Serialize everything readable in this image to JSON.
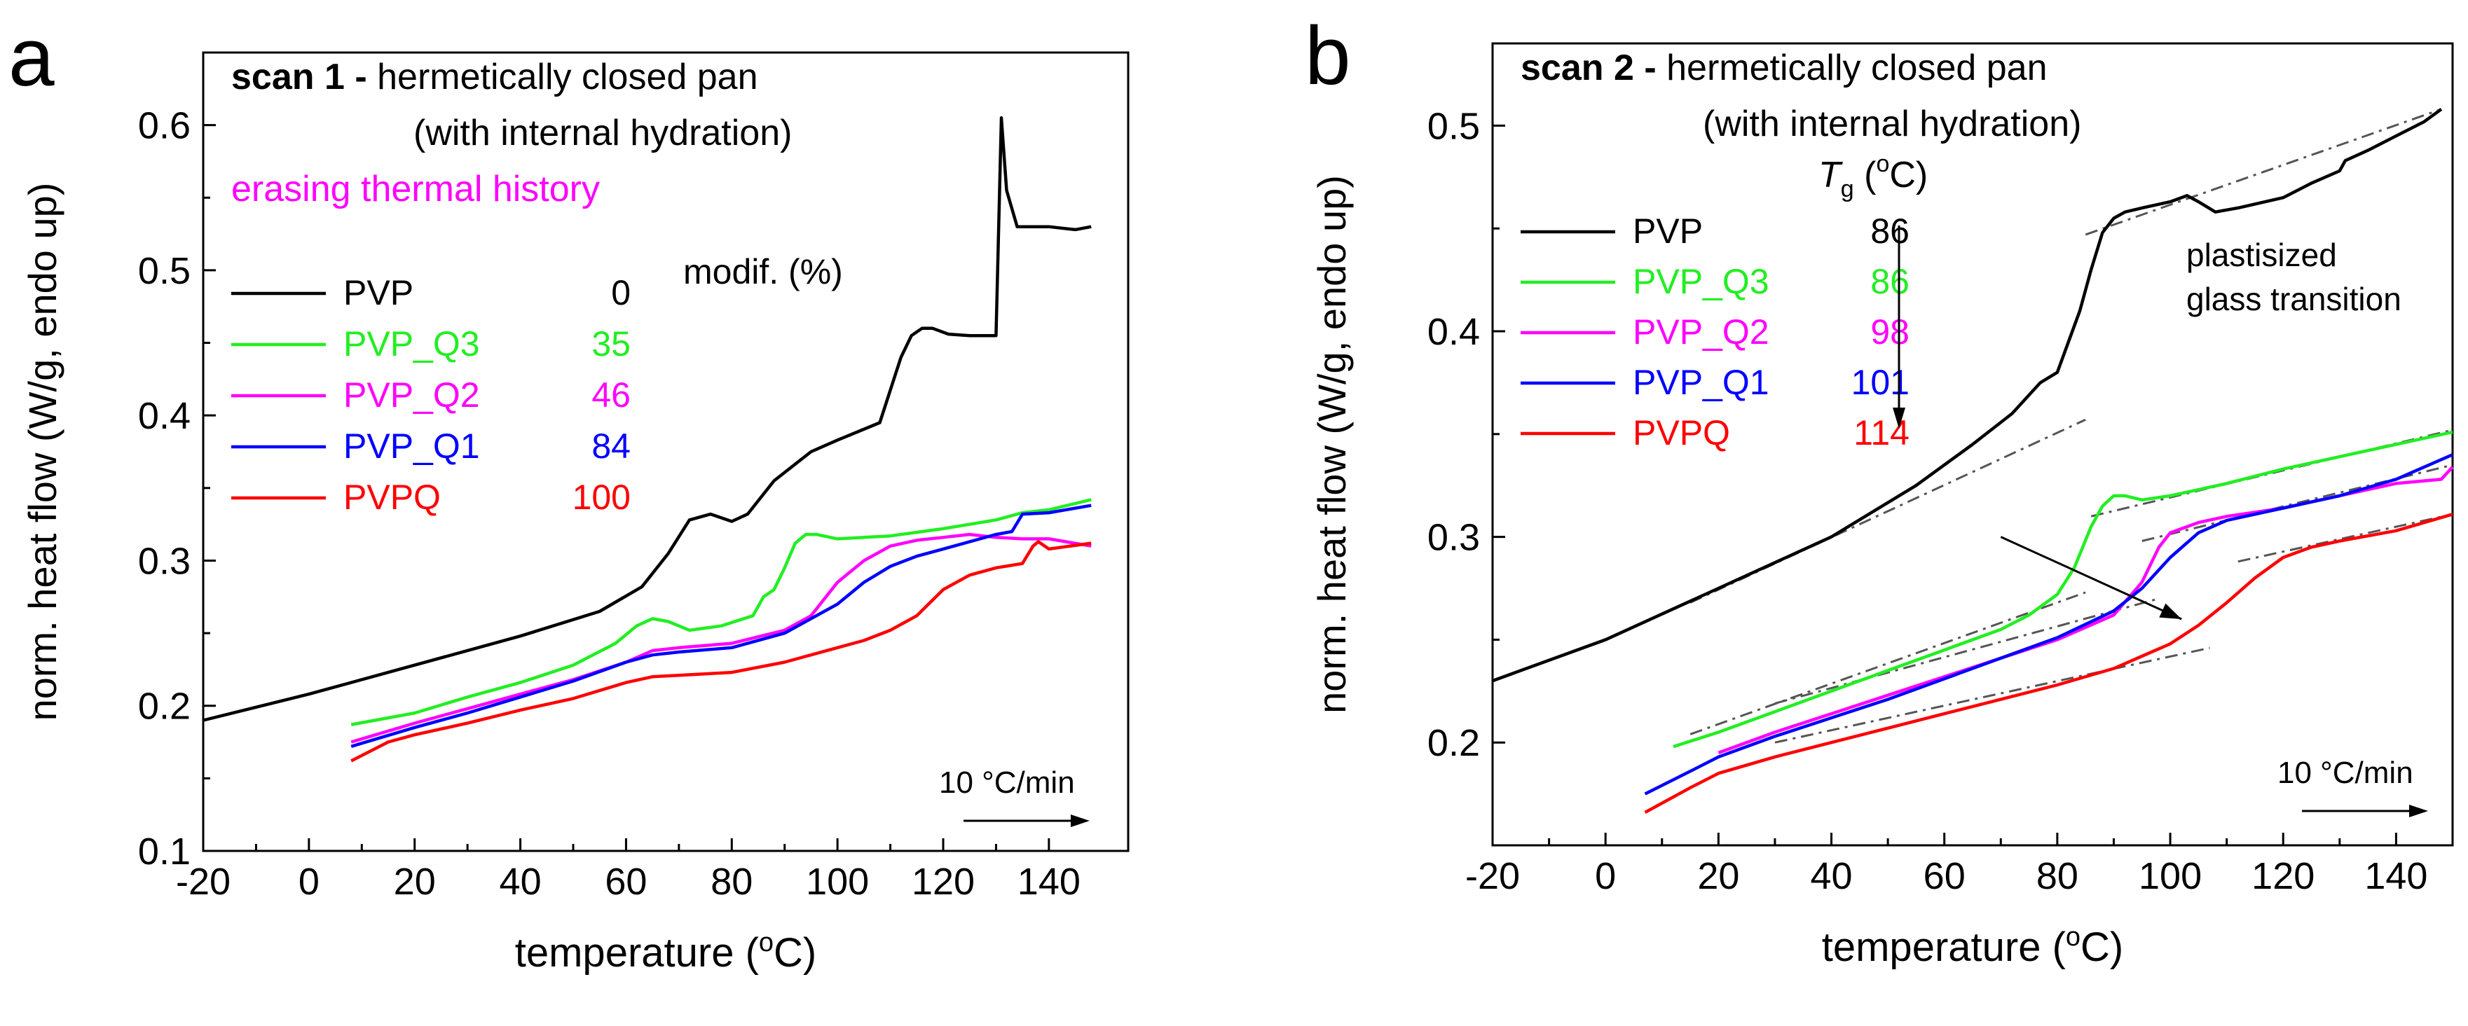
{
  "colors": {
    "PVP": "#000000",
    "PVP_Q3": "#22ee22",
    "PVP_Q2": "#ff00ff",
    "PVP_Q1": "#0000ff",
    "PVPQ": "#ff0000",
    "guide": "#555555"
  },
  "chart_data": [
    {
      "type": "line",
      "panel_label": "a",
      "title_bold": "scan 1 -",
      "title_rest": "hermetically closed pan",
      "title_line2": "(with internal hydration)",
      "subtitle": "erasing thermal history",
      "xlabel": "temperature (",
      "xlabel_sup": "o",
      "xlabel_end": "C)",
      "ylabel": "norm. heat flow (W/g, endo up)",
      "xlim": [
        -20,
        155
      ],
      "ylim": [
        0.1,
        0.65
      ],
      "xticks": [
        "-20",
        "0",
        "20",
        "40",
        "60",
        "80",
        "100",
        "120",
        "140"
      ],
      "xtick_values": [
        -20,
        0,
        20,
        40,
        60,
        80,
        100,
        120,
        140
      ],
      "yticks": [
        "0.1",
        "0.2",
        "0.3",
        "0.4",
        "0.5",
        "0.6"
      ],
      "ytick_values": [
        0.1,
        0.2,
        0.3,
        0.4,
        0.5,
        0.6
      ],
      "legend_header": "modif. (%)",
      "rate_label": "10 °C/min",
      "legend": [
        {
          "name": "PVP",
          "value": "0",
          "color_key": "PVP"
        },
        {
          "name": "PVP_Q3",
          "value": "35",
          "color_key": "PVP_Q3"
        },
        {
          "name": "PVP_Q2",
          "value": "46",
          "color_key": "PVP_Q2"
        },
        {
          "name": "PVP_Q1",
          "value": "84",
          "color_key": "PVP_Q1"
        },
        {
          "name": "PVPQ",
          "value": "100",
          "color_key": "PVPQ"
        }
      ],
      "series": [
        {
          "name": "PVP",
          "color_key": "PVP",
          "x": [
            -20,
            0,
            20,
            40,
            55,
            63,
            68,
            72,
            76,
            80,
            83,
            88,
            95,
            100,
            108,
            112,
            114,
            116,
            118,
            121,
            125,
            130,
            131,
            132,
            134,
            140,
            145,
            148
          ],
          "y": [
            0.19,
            0.208,
            0.228,
            0.248,
            0.265,
            0.282,
            0.305,
            0.328,
            0.332,
            0.327,
            0.332,
            0.355,
            0.375,
            0.383,
            0.395,
            0.44,
            0.455,
            0.46,
            0.46,
            0.456,
            0.455,
            0.455,
            0.605,
            0.555,
            0.53,
            0.53,
            0.528,
            0.53
          ]
        },
        {
          "name": "PVP_Q3",
          "color_key": "PVP_Q3",
          "x": [
            8,
            20,
            30,
            40,
            50,
            58,
            62,
            65,
            68,
            72,
            78,
            84,
            86,
            88,
            90,
            92,
            94,
            96,
            100,
            110,
            120,
            130,
            135,
            140,
            148
          ],
          "y": [
            0.187,
            0.195,
            0.206,
            0.216,
            0.228,
            0.243,
            0.255,
            0.26,
            0.258,
            0.252,
            0.255,
            0.262,
            0.275,
            0.28,
            0.295,
            0.312,
            0.318,
            0.318,
            0.315,
            0.317,
            0.322,
            0.328,
            0.333,
            0.335,
            0.342
          ]
        },
        {
          "name": "PVP_Q2",
          "color_key": "PVP_Q2",
          "x": [
            8,
            20,
            30,
            40,
            50,
            60,
            65,
            70,
            80,
            90,
            95,
            100,
            105,
            110,
            115,
            120,
            125,
            130,
            135,
            140,
            148
          ],
          "y": [
            0.175,
            0.188,
            0.198,
            0.208,
            0.218,
            0.23,
            0.238,
            0.24,
            0.243,
            0.252,
            0.262,
            0.285,
            0.3,
            0.31,
            0.314,
            0.316,
            0.318,
            0.316,
            0.315,
            0.315,
            0.31
          ]
        },
        {
          "name": "PVP_Q1",
          "color_key": "PVP_Q1",
          "x": [
            8,
            20,
            30,
            40,
            50,
            60,
            65,
            70,
            80,
            90,
            100,
            105,
            110,
            115,
            120,
            130,
            133,
            135,
            140,
            148
          ],
          "y": [
            0.172,
            0.185,
            0.195,
            0.206,
            0.217,
            0.23,
            0.235,
            0.237,
            0.24,
            0.25,
            0.27,
            0.285,
            0.296,
            0.303,
            0.308,
            0.318,
            0.32,
            0.332,
            0.333,
            0.338
          ]
        },
        {
          "name": "PVPQ",
          "color_key": "PVPQ",
          "x": [
            8,
            15,
            20,
            30,
            40,
            50,
            60,
            65,
            70,
            80,
            90,
            100,
            105,
            110,
            115,
            120,
            125,
            130,
            135,
            137,
            138,
            140,
            148
          ],
          "y": [
            0.162,
            0.175,
            0.18,
            0.188,
            0.197,
            0.205,
            0.216,
            0.22,
            0.221,
            0.223,
            0.23,
            0.24,
            0.245,
            0.252,
            0.262,
            0.28,
            0.29,
            0.295,
            0.298,
            0.31,
            0.313,
            0.308,
            0.312
          ]
        }
      ]
    },
    {
      "type": "line",
      "panel_label": "b",
      "title_bold": "scan 2 -",
      "title_rest": "hermetically closed pan",
      "title_line2": "(with internal hydration)",
      "tg_label": "T",
      "tg_sub": "g",
      "tg_paren": " (",
      "tg_sup": "o",
      "tg_end": "C)",
      "annotation_line1": "plastisized",
      "annotation_line2": "glass transition",
      "xlabel": "temperature (",
      "xlabel_sup": "o",
      "xlabel_end": "C)",
      "ylabel": "norm. heat flow (W/g, endo up)",
      "xlim": [
        -20,
        150
      ],
      "ylim": [
        0.15,
        0.54
      ],
      "xticks": [
        "-20",
        "0",
        "20",
        "40",
        "60",
        "80",
        "100",
        "120",
        "140"
      ],
      "xtick_values": [
        -20,
        0,
        20,
        40,
        60,
        80,
        100,
        120,
        140
      ],
      "yticks": [
        "0.2",
        "0.3",
        "0.4",
        "0.5"
      ],
      "ytick_values": [
        0.2,
        0.3,
        0.4,
        0.5
      ],
      "rate_label": "10 °C/min",
      "legend": [
        {
          "name": "PVP",
          "value": "86",
          "color_key": "PVP"
        },
        {
          "name": "PVP_Q3",
          "value": "86",
          "color_key": "PVP_Q3"
        },
        {
          "name": "PVP_Q2",
          "value": "98",
          "color_key": "PVP_Q2"
        },
        {
          "name": "PVP_Q1",
          "value": "101",
          "color_key": "PVP_Q1"
        },
        {
          "name": "PVPQ",
          "value": "114",
          "color_key": "PVPQ"
        }
      ],
      "series": [
        {
          "name": "PVP",
          "color_key": "PVP",
          "x": [
            -20,
            0,
            20,
            40,
            55,
            65,
            72,
            77,
            80,
            82,
            84,
            86,
            88,
            90,
            92,
            95,
            100,
            103,
            105,
            108,
            112,
            120,
            125,
            130,
            131,
            135,
            140,
            145,
            148
          ],
          "y": [
            0.23,
            0.25,
            0.275,
            0.3,
            0.325,
            0.345,
            0.36,
            0.375,
            0.38,
            0.395,
            0.41,
            0.43,
            0.448,
            0.455,
            0.458,
            0.46,
            0.463,
            0.466,
            0.463,
            0.458,
            0.46,
            0.465,
            0.472,
            0.478,
            0.483,
            0.488,
            0.495,
            0.502,
            0.508
          ]
        },
        {
          "name": "PVP_Q3",
          "color_key": "PVP_Q3",
          "x": [
            12,
            20,
            30,
            40,
            50,
            60,
            70,
            75,
            80,
            83,
            86,
            88,
            90,
            92,
            95,
            100,
            110,
            120,
            130,
            140,
            150
          ],
          "y": [
            0.198,
            0.205,
            0.215,
            0.225,
            0.235,
            0.245,
            0.255,
            0.262,
            0.272,
            0.285,
            0.305,
            0.315,
            0.32,
            0.32,
            0.318,
            0.32,
            0.326,
            0.333,
            0.339,
            0.345,
            0.351
          ]
        },
        {
          "name": "PVP_Q2",
          "color_key": "PVP_Q2",
          "x": [
            20,
            30,
            40,
            50,
            60,
            70,
            80,
            90,
            95,
            98,
            100,
            105,
            110,
            120,
            130,
            140,
            148,
            150
          ],
          "y": [
            0.195,
            0.205,
            0.214,
            0.223,
            0.232,
            0.241,
            0.25,
            0.262,
            0.278,
            0.295,
            0.302,
            0.307,
            0.31,
            0.314,
            0.32,
            0.326,
            0.328,
            0.334
          ]
        },
        {
          "name": "PVP_Q1",
          "color_key": "PVP_Q1",
          "x": [
            7,
            15,
            20,
            30,
            40,
            50,
            60,
            70,
            80,
            90,
            95,
            100,
            105,
            110,
            120,
            130,
            140,
            150
          ],
          "y": [
            0.175,
            0.186,
            0.193,
            0.203,
            0.212,
            0.221,
            0.231,
            0.241,
            0.251,
            0.264,
            0.275,
            0.29,
            0.302,
            0.308,
            0.314,
            0.32,
            0.328,
            0.34
          ]
        },
        {
          "name": "PVPQ",
          "color_key": "PVPQ",
          "x": [
            7,
            15,
            20,
            30,
            40,
            50,
            60,
            70,
            80,
            90,
            100,
            105,
            110,
            115,
            120,
            125,
            130,
            140,
            150
          ],
          "y": [
            0.166,
            0.178,
            0.185,
            0.193,
            0.2,
            0.207,
            0.214,
            0.221,
            0.228,
            0.236,
            0.248,
            0.257,
            0.268,
            0.28,
            0.29,
            0.295,
            0.298,
            0.303,
            0.311
          ]
        }
      ],
      "guide_lines": [
        {
          "x": [
            15,
            85
          ],
          "y": [
            0.268,
            0.357
          ]
        },
        {
          "x": [
            85,
            148
          ],
          "y": [
            0.447,
            0.508
          ]
        },
        {
          "x": [
            15,
            85
          ],
          "y": [
            0.204,
            0.273
          ]
        },
        {
          "x": [
            86,
            150
          ],
          "y": [
            0.31,
            0.352
          ]
        },
        {
          "x": [
            30,
            98
          ],
          "y": [
            0.219,
            0.27
          ]
        },
        {
          "x": [
            95,
            150
          ],
          "y": [
            0.298,
            0.335
          ]
        },
        {
          "x": [
            30,
            107
          ],
          "y": [
            0.2,
            0.246
          ]
        },
        {
          "x": [
            112,
            150
          ],
          "y": [
            0.288,
            0.311
          ]
        }
      ],
      "arrow": {
        "x": [
          70,
          102
        ],
        "y": [
          0.3,
          0.26
        ]
      }
    }
  ]
}
